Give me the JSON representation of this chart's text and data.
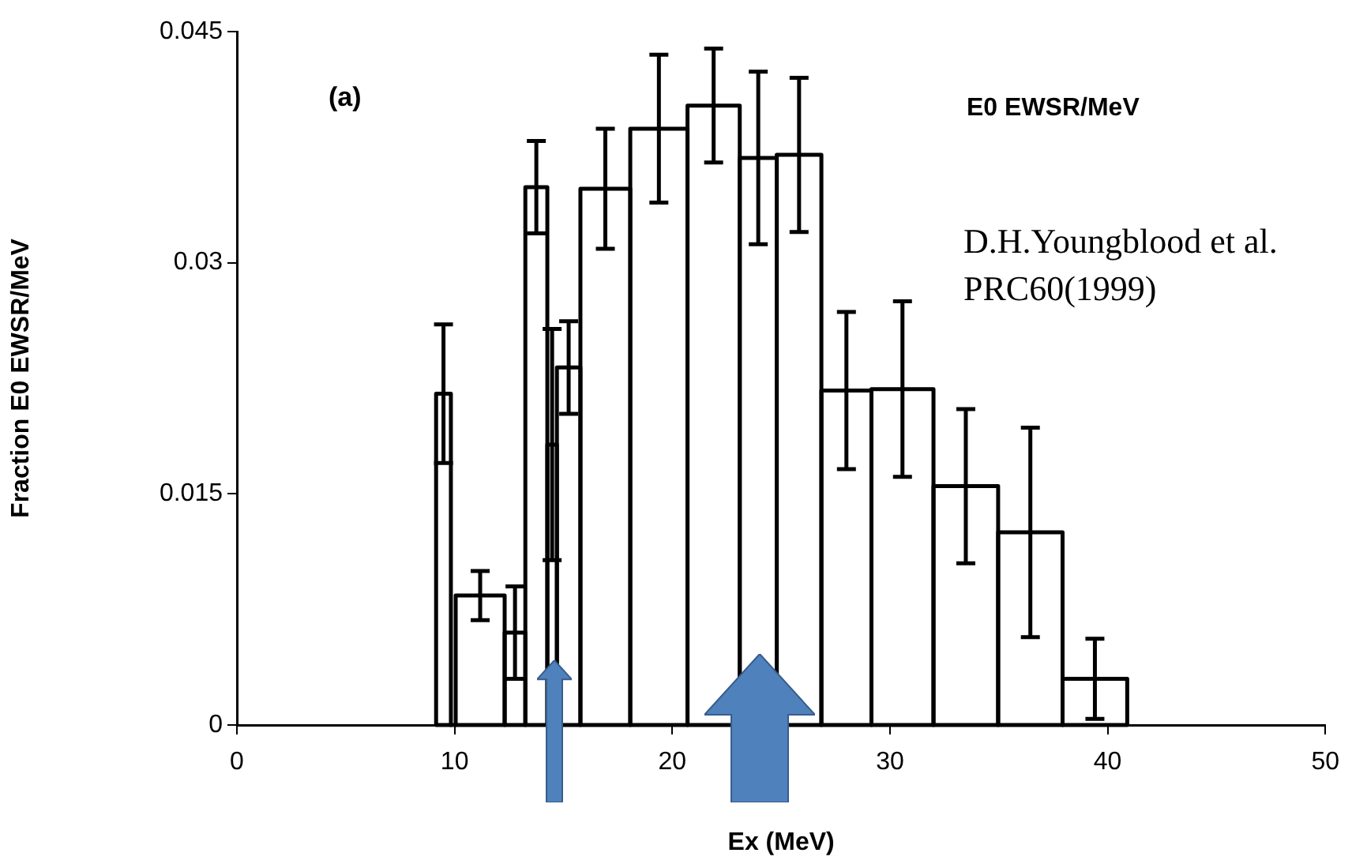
{
  "chart_data": {
    "type": "histogram",
    "xlabel": "Ex (MeV)",
    "ylabel": "Fraction E0 EWSR/MeV",
    "annotations": [
      "(a)",
      "E0  EWSR/MeV",
      "D.H.Youngblood et al.",
      "PRC60(1999)"
    ],
    "bins": [
      9.15,
      9.83,
      10.05,
      12.3,
      13.25,
      14.26,
      14.7,
      15.78,
      18.07,
      20.7,
      23.1,
      24.8,
      26.85,
      29.15,
      32.0,
      34.97,
      37.93,
      40.9
    ],
    "values": [
      0.0215,
      0,
      0.0084,
      0.006,
      0.0349,
      0.0182,
      0.0232,
      0.0348,
      0.0387,
      0.0402,
      0.0368,
      0.037,
      0.0217,
      0.0218,
      0.0155,
      0.0125,
      0.003
    ],
    "errors": [
      0.0045,
      null,
      0.0016,
      0.003,
      0.003,
      0.0075,
      0.003,
      0.0039,
      0.0048,
      0.0037,
      0.0056,
      0.005,
      0.0051,
      0.0057,
      0.005,
      0.0068,
      0.0026
    ],
    "color": "#000000",
    "xlim": [
      0,
      50
    ],
    "xticks": [
      0,
      10,
      20,
      30,
      40,
      50
    ],
    "ylim": [
      0,
      0.045
    ],
    "yticks": [
      0,
      0.015,
      0.03,
      0.045
    ],
    "grid": false,
    "legend": false
  }
}
